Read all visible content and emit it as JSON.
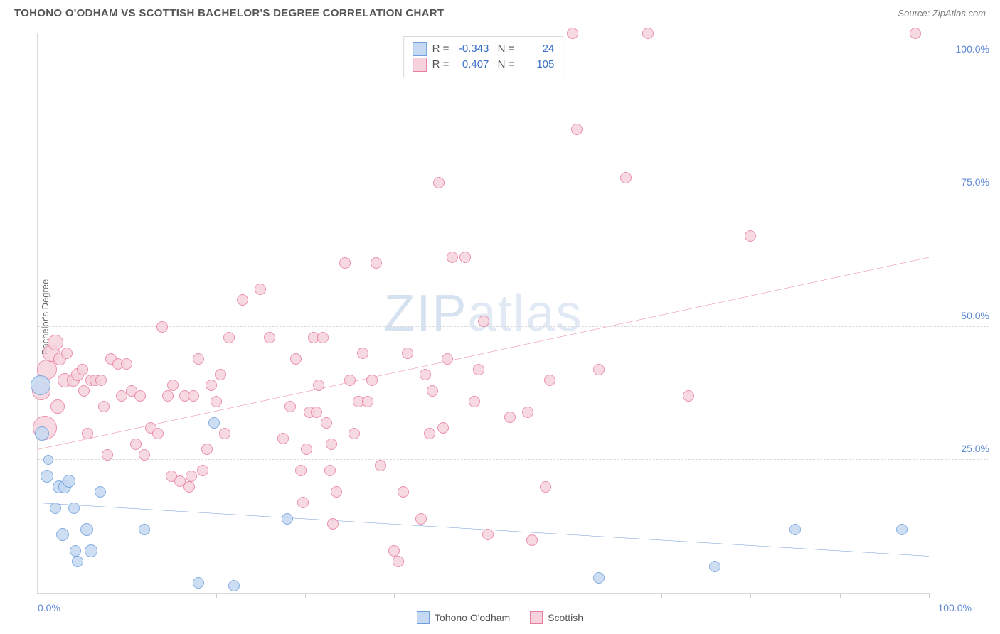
{
  "header": {
    "title": "TOHONO O'ODHAM VS SCOTTISH BACHELOR'S DEGREE CORRELATION CHART",
    "source": "Source: ZipAtlas.com"
  },
  "chart": {
    "type": "scatter",
    "yaxis_label": "Bachelor's Degree",
    "xlim": [
      0,
      100
    ],
    "ylim": [
      0,
      105
    ],
    "xtick_positions": [
      0,
      10,
      20,
      30,
      40,
      50,
      60,
      70,
      80,
      90,
      100
    ],
    "yticks": [
      25,
      50,
      75,
      100
    ],
    "ytick_labels": [
      "25.0%",
      "50.0%",
      "75.0%",
      "100.0%"
    ],
    "xaxis_left_label": "0.0%",
    "xaxis_right_label": "100.0%",
    "grid_color": "#dcdcdc",
    "background_color": "#ffffff",
    "axis_label_color": "#666666",
    "tick_label_color": "#5c88d6",
    "watermark": "ZIPatlas"
  },
  "series": {
    "tohono": {
      "label": "Tohono O'odham",
      "fill": "#c5d9f2",
      "stroke": "#6fa0dd",
      "trend_color": "#2e6fc2",
      "trend": {
        "x1": 0,
        "y1": 17,
        "x2": 100,
        "y2": 7
      },
      "stats": {
        "R": "-0.343",
        "N": "24"
      },
      "points": [
        {
          "x": 0.5,
          "y": 30,
          "r": 10
        },
        {
          "x": 0.3,
          "y": 39,
          "r": 14
        },
        {
          "x": 1.0,
          "y": 22,
          "r": 9
        },
        {
          "x": 1.2,
          "y": 25,
          "r": 7
        },
        {
          "x": 2.4,
          "y": 20,
          "r": 9
        },
        {
          "x": 2.0,
          "y": 16,
          "r": 8
        },
        {
          "x": 3.0,
          "y": 20,
          "r": 9
        },
        {
          "x": 3.5,
          "y": 21,
          "r": 9
        },
        {
          "x": 4.1,
          "y": 16,
          "r": 8
        },
        {
          "x": 2.8,
          "y": 11,
          "r": 9
        },
        {
          "x": 4.2,
          "y": 8,
          "r": 8
        },
        {
          "x": 5.5,
          "y": 12,
          "r": 9
        },
        {
          "x": 6.0,
          "y": 8,
          "r": 9
        },
        {
          "x": 7.0,
          "y": 19,
          "r": 8
        },
        {
          "x": 4.5,
          "y": 6,
          "r": 8
        },
        {
          "x": 12,
          "y": 12,
          "r": 8
        },
        {
          "x": 18,
          "y": 2,
          "r": 8
        },
        {
          "x": 19.8,
          "y": 32,
          "r": 8
        },
        {
          "x": 22,
          "y": 1.5,
          "r": 8
        },
        {
          "x": 28,
          "y": 14,
          "r": 8
        },
        {
          "x": 63,
          "y": 3,
          "r": 8
        },
        {
          "x": 76,
          "y": 5,
          "r": 8
        },
        {
          "x": 85,
          "y": 12,
          "r": 8
        },
        {
          "x": 97,
          "y": 12,
          "r": 8
        }
      ]
    },
    "scottish": {
      "label": "Scottish",
      "fill": "#f6d3dc",
      "stroke": "#e87da0",
      "trend_color": "#e0427a",
      "trend": {
        "x1": 0,
        "y1": 27,
        "x2": 100,
        "y2": 63
      },
      "stats": {
        "R": "0.407",
        "N": "105"
      },
      "points": [
        {
          "x": 0.4,
          "y": 38,
          "r": 13
        },
        {
          "x": 0.8,
          "y": 31,
          "r": 17
        },
        {
          "x": 1.0,
          "y": 42,
          "r": 14
        },
        {
          "x": 1.5,
          "y": 45,
          "r": 12
        },
        {
          "x": 2.0,
          "y": 47,
          "r": 11
        },
        {
          "x": 2.5,
          "y": 44,
          "r": 9
        },
        {
          "x": 2.2,
          "y": 35,
          "r": 10
        },
        {
          "x": 3.0,
          "y": 40,
          "r": 10
        },
        {
          "x": 3.3,
          "y": 45,
          "r": 8
        },
        {
          "x": 4.0,
          "y": 40,
          "r": 9
        },
        {
          "x": 4.5,
          "y": 41,
          "r": 9
        },
        {
          "x": 5.0,
          "y": 42,
          "r": 8
        },
        {
          "x": 5.2,
          "y": 38,
          "r": 8
        },
        {
          "x": 5.6,
          "y": 30,
          "r": 8
        },
        {
          "x": 6.0,
          "y": 40,
          "r": 8
        },
        {
          "x": 6.5,
          "y": 40,
          "r": 8
        },
        {
          "x": 7.1,
          "y": 40,
          "r": 8
        },
        {
          "x": 7.4,
          "y": 35,
          "r": 8
        },
        {
          "x": 7.8,
          "y": 26,
          "r": 8
        },
        {
          "x": 8.2,
          "y": 44,
          "r": 8
        },
        {
          "x": 9.0,
          "y": 43,
          "r": 8
        },
        {
          "x": 9.4,
          "y": 37,
          "r": 8
        },
        {
          "x": 10,
          "y": 43,
          "r": 8
        },
        {
          "x": 10.5,
          "y": 38,
          "r": 8
        },
        {
          "x": 11,
          "y": 28,
          "r": 8
        },
        {
          "x": 11.5,
          "y": 37,
          "r": 8
        },
        {
          "x": 12,
          "y": 26,
          "r": 8
        },
        {
          "x": 12.7,
          "y": 31,
          "r": 8
        },
        {
          "x": 13.5,
          "y": 30,
          "r": 8
        },
        {
          "x": 14,
          "y": 50,
          "r": 8
        },
        {
          "x": 14.6,
          "y": 37,
          "r": 8
        },
        {
          "x": 15.2,
          "y": 39,
          "r": 8
        },
        {
          "x": 15,
          "y": 22,
          "r": 8
        },
        {
          "x": 16,
          "y": 21,
          "r": 8
        },
        {
          "x": 16.5,
          "y": 37,
          "r": 8
        },
        {
          "x": 17,
          "y": 20,
          "r": 8
        },
        {
          "x": 17.5,
          "y": 37,
          "r": 8
        },
        {
          "x": 17.2,
          "y": 22,
          "r": 8
        },
        {
          "x": 18,
          "y": 44,
          "r": 8
        },
        {
          "x": 18.5,
          "y": 23,
          "r": 8
        },
        {
          "x": 19,
          "y": 27,
          "r": 8
        },
        {
          "x": 19.5,
          "y": 39,
          "r": 8
        },
        {
          "x": 20,
          "y": 36,
          "r": 8
        },
        {
          "x": 20.5,
          "y": 41,
          "r": 8
        },
        {
          "x": 21,
          "y": 30,
          "r": 8
        },
        {
          "x": 21.5,
          "y": 48,
          "r": 8
        },
        {
          "x": 23,
          "y": 55,
          "r": 8
        },
        {
          "x": 25,
          "y": 57,
          "r": 8
        },
        {
          "x": 26,
          "y": 48,
          "r": 8
        },
        {
          "x": 27.5,
          "y": 29,
          "r": 8
        },
        {
          "x": 28.3,
          "y": 35,
          "r": 8
        },
        {
          "x": 29,
          "y": 44,
          "r": 8
        },
        {
          "x": 29.5,
          "y": 23,
          "r": 8
        },
        {
          "x": 29.8,
          "y": 17,
          "r": 8
        },
        {
          "x": 30.5,
          "y": 34,
          "r": 8
        },
        {
          "x": 30.2,
          "y": 27,
          "r": 8
        },
        {
          "x": 31,
          "y": 48,
          "r": 8
        },
        {
          "x": 31.3,
          "y": 34,
          "r": 8
        },
        {
          "x": 31.5,
          "y": 39,
          "r": 8
        },
        {
          "x": 32,
          "y": 48,
          "r": 8
        },
        {
          "x": 32.4,
          "y": 32,
          "r": 8
        },
        {
          "x": 32.8,
          "y": 23,
          "r": 8
        },
        {
          "x": 33,
          "y": 28,
          "r": 8
        },
        {
          "x": 33.5,
          "y": 19,
          "r": 8
        },
        {
          "x": 33.1,
          "y": 13,
          "r": 8
        },
        {
          "x": 34.5,
          "y": 62,
          "r": 8
        },
        {
          "x": 35,
          "y": 40,
          "r": 8
        },
        {
          "x": 35.5,
          "y": 30,
          "r": 8
        },
        {
          "x": 36,
          "y": 36,
          "r": 8
        },
        {
          "x": 36.5,
          "y": 45,
          "r": 8
        },
        {
          "x": 37,
          "y": 36,
          "r": 8
        },
        {
          "x": 37.5,
          "y": 40,
          "r": 8
        },
        {
          "x": 38,
          "y": 62,
          "r": 8
        },
        {
          "x": 38.5,
          "y": 24,
          "r": 8
        },
        {
          "x": 40,
          "y": 8,
          "r": 8
        },
        {
          "x": 40.5,
          "y": 6,
          "r": 8
        },
        {
          "x": 41,
          "y": 19,
          "r": 8
        },
        {
          "x": 41.5,
          "y": 45,
          "r": 8
        },
        {
          "x": 43,
          "y": 14,
          "r": 8
        },
        {
          "x": 43.5,
          "y": 41,
          "r": 8
        },
        {
          "x": 44,
          "y": 30,
          "r": 8
        },
        {
          "x": 44.3,
          "y": 38,
          "r": 8
        },
        {
          "x": 45,
          "y": 77,
          "r": 8
        },
        {
          "x": 45.5,
          "y": 31,
          "r": 8
        },
        {
          "x": 46,
          "y": 44,
          "r": 8
        },
        {
          "x": 46.5,
          "y": 63,
          "r": 8
        },
        {
          "x": 48,
          "y": 63,
          "r": 8
        },
        {
          "x": 49,
          "y": 36,
          "r": 8
        },
        {
          "x": 49.5,
          "y": 42,
          "r": 8
        },
        {
          "x": 50,
          "y": 51,
          "r": 8
        },
        {
          "x": 50.5,
          "y": 11,
          "r": 8
        },
        {
          "x": 53,
          "y": 33,
          "r": 8
        },
        {
          "x": 55,
          "y": 34,
          "r": 8
        },
        {
          "x": 55.5,
          "y": 10,
          "r": 8
        },
        {
          "x": 57,
          "y": 20,
          "r": 8
        },
        {
          "x": 57.5,
          "y": 40,
          "r": 8
        },
        {
          "x": 60,
          "y": 105,
          "r": 8
        },
        {
          "x": 60.5,
          "y": 87,
          "r": 8
        },
        {
          "x": 63,
          "y": 42,
          "r": 8
        },
        {
          "x": 66,
          "y": 78,
          "r": 8
        },
        {
          "x": 68.5,
          "y": 105,
          "r": 8
        },
        {
          "x": 73,
          "y": 37,
          "r": 8
        },
        {
          "x": 80,
          "y": 67,
          "r": 8
        },
        {
          "x": 98.5,
          "y": 105,
          "r": 8
        }
      ]
    }
  },
  "legend": {
    "labels": [
      "Tohono O'odham",
      "Scottish"
    ]
  }
}
